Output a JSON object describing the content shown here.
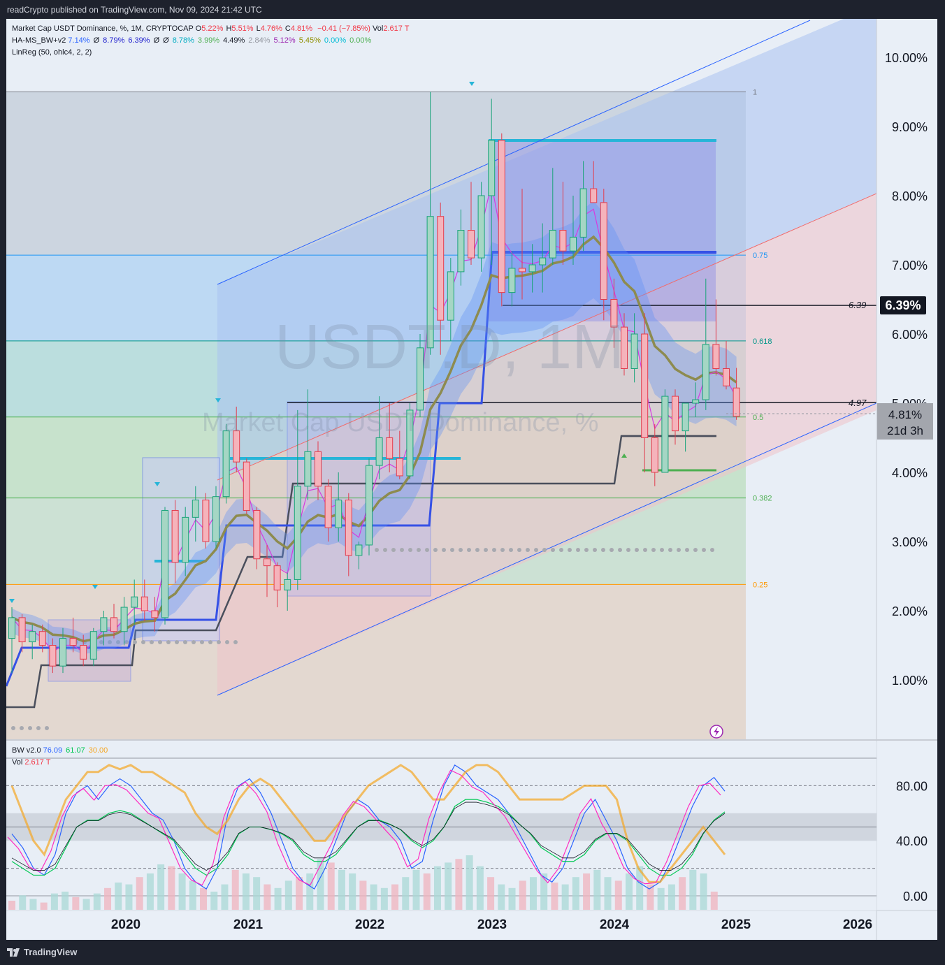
{
  "header": {
    "published": "readCrypto published on TradingView.com, Nov 09, 2024 21:42 UTC"
  },
  "footer": {
    "brand": "TradingView"
  },
  "watermark": {
    "big": "USDT.D, 1M",
    "small": "Market Cap USDT Dominance, %"
  },
  "legend": {
    "main_title": "Market Cap USDT Dominance, %, 1M, CRYPTOCAP",
    "ohlc": [
      {
        "k": "O",
        "v": "5.22%"
      },
      {
        "k": "H",
        "v": "5.51%"
      },
      {
        "k": "L",
        "v": "4.76%"
      },
      {
        "k": "C",
        "v": "4.81%"
      }
    ],
    "change": "−0.41 (−7.85%)",
    "vol_label": "Vol",
    "vol_value": "2.617 T",
    "ha_name": "HA-MS_BW+v2",
    "ha_values": [
      {
        "v": "7.14%",
        "c": "#2962ff"
      },
      {
        "v": "Ø",
        "c": "#131722"
      },
      {
        "v": "8.79%",
        "c": "#1c1ccc"
      },
      {
        "v": "6.39%",
        "c": "#1c1ccc"
      },
      {
        "v": "Ø",
        "c": "#131722"
      },
      {
        "v": "Ø",
        "c": "#131722"
      },
      {
        "v": "8.78%",
        "c": "#00acc1"
      },
      {
        "v": "3.99%",
        "c": "#4caf50"
      },
      {
        "v": "4.49%",
        "c": "#131722"
      },
      {
        "v": "2.84%",
        "c": "#9598a1"
      },
      {
        "v": "5.12%",
        "c": "#9c27b0"
      },
      {
        "v": "5.45%",
        "c": "#8f8f00"
      },
      {
        "v": "0.00%",
        "c": "#00bcd4"
      },
      {
        "v": "0.00%",
        "c": "#4caf50"
      }
    ],
    "linreg": "LinReg (50, ohlc4, 2, 2)",
    "bw_name": "BW v2.0",
    "bw_values": [
      {
        "v": "76.09",
        "c": "#2962ff"
      },
      {
        "v": "61.07",
        "c": "#00c853"
      },
      {
        "v": "30.00",
        "c": "#f5a623"
      }
    ],
    "vol2_label": "Vol",
    "vol2_value": "2.617 T"
  },
  "price_labels": {
    "current": "6.39%",
    "close": "4.81%",
    "countdown": "21d 3h",
    "line_639": "6.39",
    "line_497": "4.97"
  },
  "fib_levels": [
    {
      "label": "1",
      "value": 9.5,
      "color": "#787b86"
    },
    {
      "label": "0.75",
      "value": 7.14,
      "color": "#2196f3"
    },
    {
      "label": "0.618",
      "value": 5.9,
      "color": "#009688"
    },
    {
      "label": "0.5",
      "value": 4.8,
      "color": "#4caf50"
    },
    {
      "label": "0.382",
      "value": 3.63,
      "color": "#4caf50"
    },
    {
      "label": "0.25",
      "value": 2.38,
      "color": "#ff9800"
    }
  ],
  "chart_data": [
    {
      "type": "candlestick",
      "title": "Market Cap USDT Dominance, %, 1M, CRYPTOCAP",
      "y_axis": {
        "ticks": [
          "1.00%",
          "2.00%",
          "3.00%",
          "4.00%",
          "5.00%",
          "6.00%",
          "7.00%",
          "8.00%",
          "9.00%",
          "10.00%"
        ],
        "range": [
          0.0,
          10.5
        ]
      },
      "x_axis": {
        "ticks": [
          "2020",
          "2021",
          "2022",
          "2023",
          "2024",
          "2025",
          "2026"
        ]
      },
      "candles": [
        {
          "o": 1.6,
          "h": 2.05,
          "l": 1.1,
          "c": 1.9
        },
        {
          "o": 1.9,
          "h": 1.95,
          "l": 1.4,
          "c": 1.55
        },
        {
          "o": 1.55,
          "h": 1.8,
          "l": 1.3,
          "c": 1.7
        },
        {
          "o": 1.7,
          "h": 1.8,
          "l": 1.4,
          "c": 1.5
        },
        {
          "o": 1.5,
          "h": 1.6,
          "l": 1.1,
          "c": 1.2
        },
        {
          "o": 1.2,
          "h": 1.75,
          "l": 1.1,
          "c": 1.6
        },
        {
          "o": 1.6,
          "h": 1.9,
          "l": 1.4,
          "c": 1.5
        },
        {
          "o": 1.5,
          "h": 1.65,
          "l": 1.2,
          "c": 1.3
        },
        {
          "o": 1.3,
          "h": 1.75,
          "l": 1.2,
          "c": 1.7
        },
        {
          "o": 1.7,
          "h": 2.0,
          "l": 1.5,
          "c": 1.9
        },
        {
          "o": 1.9,
          "h": 2.1,
          "l": 1.6,
          "c": 1.7
        },
        {
          "o": 1.7,
          "h": 2.2,
          "l": 1.5,
          "c": 2.05
        },
        {
          "o": 2.05,
          "h": 2.45,
          "l": 1.8,
          "c": 2.2
        },
        {
          "o": 2.2,
          "h": 2.45,
          "l": 1.85,
          "c": 2.0
        },
        {
          "o": 2.0,
          "h": 2.2,
          "l": 1.7,
          "c": 1.9
        },
        {
          "o": 1.9,
          "h": 3.5,
          "l": 1.8,
          "c": 3.45
        },
        {
          "o": 3.45,
          "h": 3.6,
          "l": 2.4,
          "c": 2.7
        },
        {
          "o": 2.7,
          "h": 3.5,
          "l": 2.5,
          "c": 3.35
        },
        {
          "o": 3.35,
          "h": 3.8,
          "l": 3.0,
          "c": 3.6
        },
        {
          "o": 3.6,
          "h": 3.7,
          "l": 2.9,
          "c": 3.0
        },
        {
          "o": 3.0,
          "h": 3.8,
          "l": 2.9,
          "c": 3.65
        },
        {
          "o": 3.65,
          "h": 4.7,
          "l": 3.55,
          "c": 4.6
        },
        {
          "o": 4.6,
          "h": 4.95,
          "l": 4.0,
          "c": 4.15
        },
        {
          "o": 4.15,
          "h": 4.2,
          "l": 3.4,
          "c": 3.45
        },
        {
          "o": 3.45,
          "h": 3.5,
          "l": 2.6,
          "c": 2.75
        },
        {
          "o": 2.75,
          "h": 2.95,
          "l": 2.2,
          "c": 2.65
        },
        {
          "o": 2.65,
          "h": 2.7,
          "l": 2.05,
          "c": 2.3
        },
        {
          "o": 2.3,
          "h": 2.55,
          "l": 2.0,
          "c": 2.45
        },
        {
          "o": 2.45,
          "h": 4.9,
          "l": 2.3,
          "c": 3.8
        },
        {
          "o": 3.8,
          "h": 5.2,
          "l": 3.6,
          "c": 4.3
        },
        {
          "o": 4.3,
          "h": 4.45,
          "l": 3.6,
          "c": 3.8
        },
        {
          "o": 3.8,
          "h": 3.9,
          "l": 3.0,
          "c": 3.2
        },
        {
          "o": 3.2,
          "h": 4.0,
          "l": 3.0,
          "c": 3.6
        },
        {
          "o": 3.6,
          "h": 3.7,
          "l": 2.5,
          "c": 2.8
        },
        {
          "o": 2.8,
          "h": 3.0,
          "l": 2.6,
          "c": 2.95
        },
        {
          "o": 2.95,
          "h": 4.2,
          "l": 2.8,
          "c": 4.1
        },
        {
          "o": 4.1,
          "h": 5.1,
          "l": 3.9,
          "c": 4.5
        },
        {
          "o": 4.5,
          "h": 5.0,
          "l": 4.0,
          "c": 4.2
        },
        {
          "o": 4.2,
          "h": 4.6,
          "l": 3.9,
          "c": 3.95
        },
        {
          "o": 3.95,
          "h": 5.0,
          "l": 3.9,
          "c": 4.9
        },
        {
          "o": 4.9,
          "h": 6.0,
          "l": 4.8,
          "c": 5.8
        },
        {
          "o": 5.8,
          "h": 9.5,
          "l": 5.7,
          "c": 7.7
        },
        {
          "o": 7.7,
          "h": 7.9,
          "l": 5.7,
          "c": 6.2
        },
        {
          "o": 6.2,
          "h": 7.1,
          "l": 5.9,
          "c": 6.9
        },
        {
          "o": 6.9,
          "h": 7.8,
          "l": 6.7,
          "c": 7.5
        },
        {
          "o": 7.5,
          "h": 8.2,
          "l": 7.0,
          "c": 7.1
        },
        {
          "o": 7.1,
          "h": 8.2,
          "l": 6.9,
          "c": 8.0
        },
        {
          "o": 8.0,
          "h": 9.4,
          "l": 7.0,
          "c": 8.8
        },
        {
          "o": 8.8,
          "h": 8.9,
          "l": 6.4,
          "c": 6.6
        },
        {
          "o": 6.6,
          "h": 7.2,
          "l": 6.4,
          "c": 6.95
        },
        {
          "o": 6.95,
          "h": 8.1,
          "l": 6.5,
          "c": 6.9
        },
        {
          "o": 6.9,
          "h": 7.3,
          "l": 6.6,
          "c": 7.0
        },
        {
          "o": 7.0,
          "h": 7.6,
          "l": 6.6,
          "c": 7.1
        },
        {
          "o": 7.1,
          "h": 8.4,
          "l": 7.0,
          "c": 7.5
        },
        {
          "o": 7.5,
          "h": 8.2,
          "l": 7.0,
          "c": 7.2
        },
        {
          "o": 7.2,
          "h": 8.0,
          "l": 7.0,
          "c": 7.4
        },
        {
          "o": 7.4,
          "h": 8.5,
          "l": 7.2,
          "c": 8.1
        },
        {
          "o": 8.1,
          "h": 8.5,
          "l": 7.9,
          "c": 7.9
        },
        {
          "o": 7.9,
          "h": 8.1,
          "l": 6.2,
          "c": 6.5
        },
        {
          "o": 6.5,
          "h": 6.8,
          "l": 5.8,
          "c": 6.1
        },
        {
          "o": 6.1,
          "h": 6.3,
          "l": 5.4,
          "c": 5.5
        },
        {
          "o": 5.5,
          "h": 6.3,
          "l": 5.3,
          "c": 6.0
        },
        {
          "o": 6.0,
          "h": 6.3,
          "l": 4.0,
          "c": 4.5
        },
        {
          "o": 4.5,
          "h": 4.7,
          "l": 3.8,
          "c": 4.0
        },
        {
          "o": 4.0,
          "h": 5.2,
          "l": 4.0,
          "c": 5.1
        },
        {
          "o": 5.1,
          "h": 5.2,
          "l": 4.4,
          "c": 4.6
        },
        {
          "o": 4.6,
          "h": 5.0,
          "l": 4.3,
          "c": 5.0
        },
        {
          "o": 5.0,
          "h": 5.3,
          "l": 4.8,
          "c": 5.05
        },
        {
          "o": 5.05,
          "h": 6.8,
          "l": 4.9,
          "c": 5.85
        },
        {
          "o": 5.85,
          "h": 6.5,
          "l": 5.4,
          "c": 5.5
        },
        {
          "o": 5.5,
          "h": 5.9,
          "l": 5.2,
          "c": 5.25
        },
        {
          "o": 5.22,
          "h": 5.51,
          "l": 4.76,
          "c": 4.81
        }
      ],
      "annotations": [
        "1",
        "0.75",
        "0.618",
        "0.5",
        "0.382",
        "0.25",
        "6.39",
        "4.97"
      ]
    },
    {
      "type": "line",
      "title": "BW v2.0",
      "y_axis": {
        "ticks": [
          "0.00",
          "40.00",
          "80.00"
        ],
        "range": [
          -10,
          100
        ]
      },
      "series": [
        {
          "name": "76.09",
          "values": [
            45,
            35,
            20,
            15,
            30,
            60,
            75,
            80,
            70,
            80,
            85,
            80,
            70,
            60,
            55,
            40,
            20,
            10,
            5,
            20,
            60,
            80,
            85,
            75,
            60,
            40,
            20,
            10,
            5,
            20,
            40,
            60,
            70,
            65,
            55,
            50,
            40,
            20,
            25,
            55,
            80,
            95,
            90,
            80,
            75,
            70,
            60,
            45,
            30,
            15,
            10,
            20,
            40,
            60,
            70,
            55,
            40,
            20,
            10,
            5,
            10,
            25,
            45,
            65,
            80,
            86,
            76
          ]
        },
        {
          "name": "61.07",
          "values": [
            25,
            20,
            15,
            15,
            20,
            35,
            50,
            55,
            55,
            60,
            62,
            60,
            55,
            50,
            45,
            40,
            30,
            20,
            15,
            20,
            30,
            45,
            50,
            50,
            48,
            45,
            40,
            30,
            25,
            25,
            30,
            40,
            50,
            55,
            55,
            52,
            48,
            40,
            35,
            40,
            50,
            65,
            70,
            70,
            68,
            65,
            60,
            52,
            45,
            35,
            30,
            25,
            25,
            30,
            40,
            45,
            45,
            40,
            30,
            20,
            15,
            15,
            20,
            30,
            45,
            55,
            61
          ]
        },
        {
          "name": "30.00",
          "values": [
            80,
            60,
            40,
            30,
            50,
            70,
            80,
            90,
            90,
            95,
            92,
            95,
            90,
            90,
            85,
            80,
            75,
            60,
            50,
            45,
            55,
            70,
            80,
            85,
            80,
            70,
            60,
            50,
            40,
            40,
            50,
            60,
            70,
            80,
            85,
            90,
            95,
            90,
            80,
            70,
            70,
            80,
            90,
            95,
            95,
            90,
            80,
            70,
            70,
            70,
            70,
            70,
            75,
            80,
            80,
            80,
            70,
            40,
            20,
            10,
            10,
            20,
            30,
            40,
            50,
            40,
            30
          ]
        }
      ],
      "volume": [
        5,
        8,
        6,
        4,
        9,
        10,
        7,
        6,
        9,
        12,
        15,
        14,
        18,
        20,
        25,
        24,
        20,
        16,
        12,
        10,
        14,
        22,
        20,
        18,
        14,
        12,
        16,
        18,
        20,
        28,
        26,
        22,
        20,
        16,
        14,
        12,
        14,
        18,
        22,
        20,
        24,
        26,
        28,
        30,
        24,
        18,
        14,
        12,
        16,
        18,
        20,
        15,
        14,
        18,
        20,
        22,
        18,
        16,
        20,
        24,
        14,
        12,
        14,
        18,
        22,
        20,
        10
      ]
    }
  ]
}
